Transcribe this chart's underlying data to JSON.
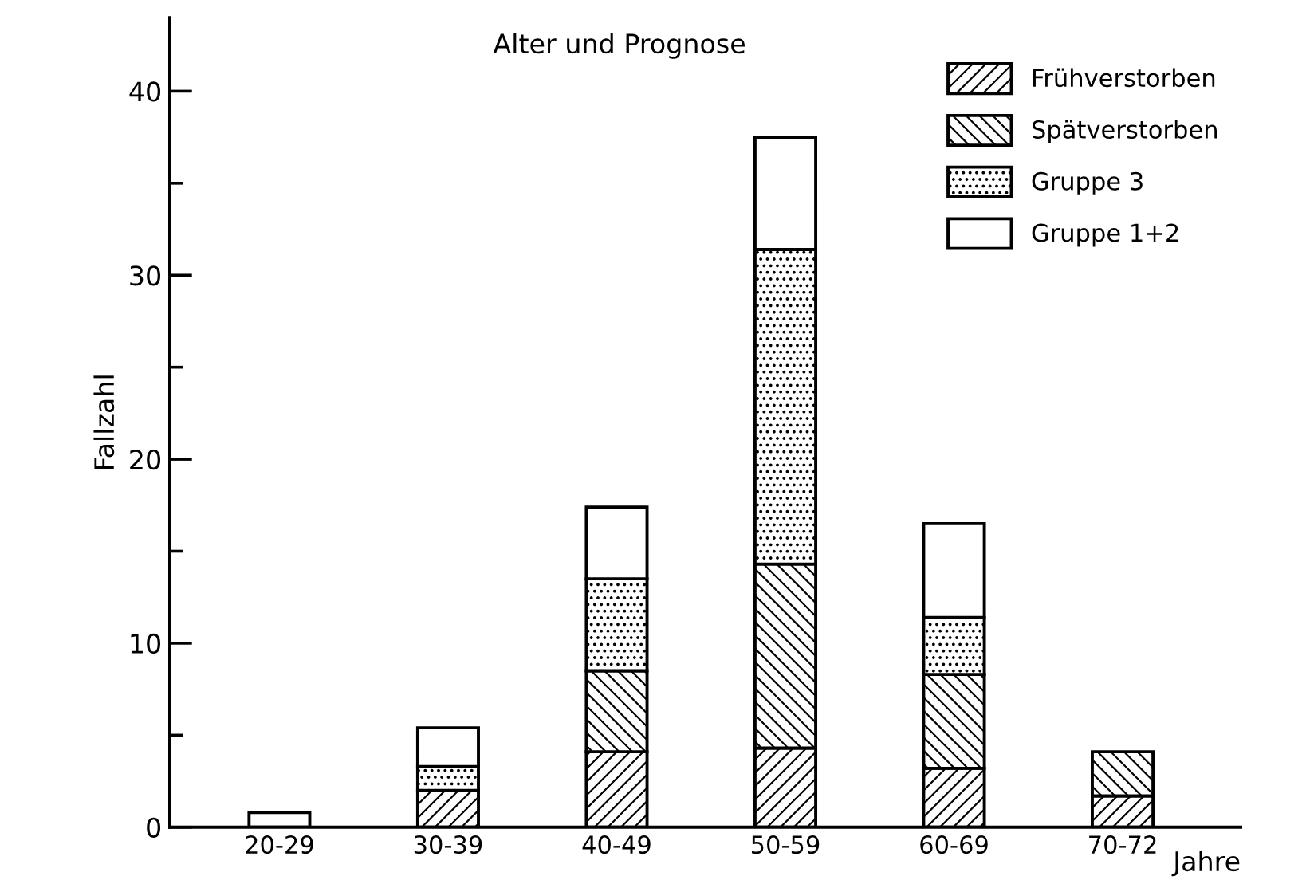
{
  "chart_data": {
    "type": "bar",
    "stacked": true,
    "title": "Alter und Prognose",
    "ylabel": "Fallzahl",
    "xlabel": "Jahre",
    "categories": [
      "20-29",
      "30-39",
      "40-49",
      "50-59",
      "60-69",
      "70-72"
    ],
    "series": [
      {
        "name": "Frühverstorben",
        "color": "#000000",
        "values": [
          null,
          2,
          4.1,
          4.3,
          3.2,
          1.7
        ]
      },
      {
        "name": "Spätverstorben",
        "color": "#000000",
        "values": [
          null,
          null,
          4.4,
          10,
          5.1,
          2.4
        ]
      },
      {
        "name": "Gruppe 3",
        "color": "#000000",
        "values": [
          null,
          1.3,
          5,
          17.1,
          3.1,
          null
        ]
      },
      {
        "name": "Gruppe 1+2",
        "color": "#ffffff",
        "values": [
          0.8,
          2.1,
          3.9,
          6.1,
          5.1,
          null
        ]
      }
    ],
    "ylim": [
      0,
      44
    ],
    "yticks": [
      0,
      {
        "value": 5,
        "label": null
      },
      10,
      {
        "value": 15,
        "label": null
      },
      20,
      {
        "value": 25,
        "label": null
      },
      30,
      {
        "value": 35,
        "label": null
      },
      40
    ],
    "grid": false,
    "legend": "top right"
  }
}
